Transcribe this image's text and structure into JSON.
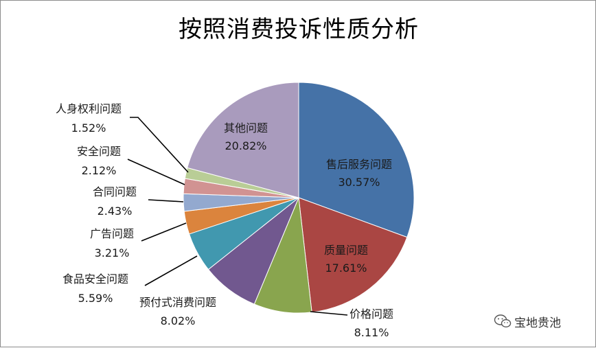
{
  "chart_data": {
    "type": "pie",
    "title": "按照消费投诉性质分析",
    "slices": [
      {
        "label": "售后服务问题",
        "percent_label": "30.57%",
        "value": 30.57,
        "color": "#4572a7"
      },
      {
        "label": "质量问题",
        "percent_label": "17.61%",
        "value": 17.61,
        "color": "#aa4643"
      },
      {
        "label": "价格问题",
        "percent_label": "8.11%",
        "value": 8.11,
        "color": "#89a54e"
      },
      {
        "label": "预付式消费问题",
        "percent_label": "8.02%",
        "value": 8.02,
        "color": "#71588f"
      },
      {
        "label": "食品安全问题",
        "percent_label": "5.59%",
        "value": 5.59,
        "color": "#4198af"
      },
      {
        "label": "广告问题",
        "percent_label": "3.21%",
        "value": 3.21,
        "color": "#db843d"
      },
      {
        "label": "合同问题",
        "percent_label": "2.43%",
        "value": 2.43,
        "color": "#93a9cf"
      },
      {
        "label": "安全问题",
        "percent_label": "2.12%",
        "value": 2.12,
        "color": "#d19392"
      },
      {
        "label": "人身权利问题",
        "percent_label": "1.52%",
        "value": 1.52,
        "color": "#b9cd96"
      },
      {
        "label": "其他问题",
        "percent_label": "20.82%",
        "value": 20.82,
        "color": "#a99bbd"
      }
    ],
    "start_angle": "12 o'clock",
    "direction": "clockwise",
    "legend": "none",
    "data_labels": "category and percent"
  },
  "watermark": {
    "icon": "wechat-icon",
    "text": "宝地贵池"
  }
}
